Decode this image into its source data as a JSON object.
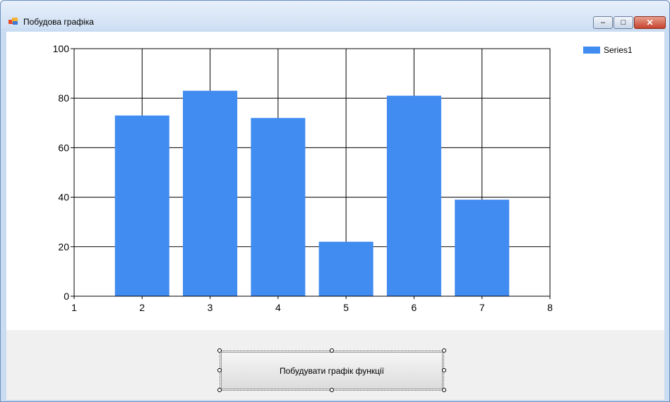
{
  "window": {
    "title": "Побудова графіка",
    "controls": {
      "minimize": "–",
      "maximize": "□",
      "close": "✕"
    }
  },
  "icons": [
    "app-icon",
    "minimize-icon",
    "maximize-icon",
    "close-icon"
  ],
  "button": {
    "label": "Побудувати графік функції"
  },
  "chart_data": {
    "type": "bar",
    "x": [
      2,
      3,
      4,
      5,
      6,
      7
    ],
    "series": [
      {
        "name": "Series1",
        "values": [
          73,
          83,
          72,
          22,
          81,
          39
        ],
        "color": "#418cf0"
      }
    ],
    "xlim": [
      1,
      8
    ],
    "ylim": [
      0,
      100
    ],
    "xticks": [
      1,
      2,
      3,
      4,
      5,
      6,
      7,
      8
    ],
    "yticks": [
      0,
      20,
      40,
      60,
      80,
      100
    ],
    "grid": true,
    "legend": "top-right",
    "title": "",
    "xlabel": "",
    "ylabel": ""
  }
}
